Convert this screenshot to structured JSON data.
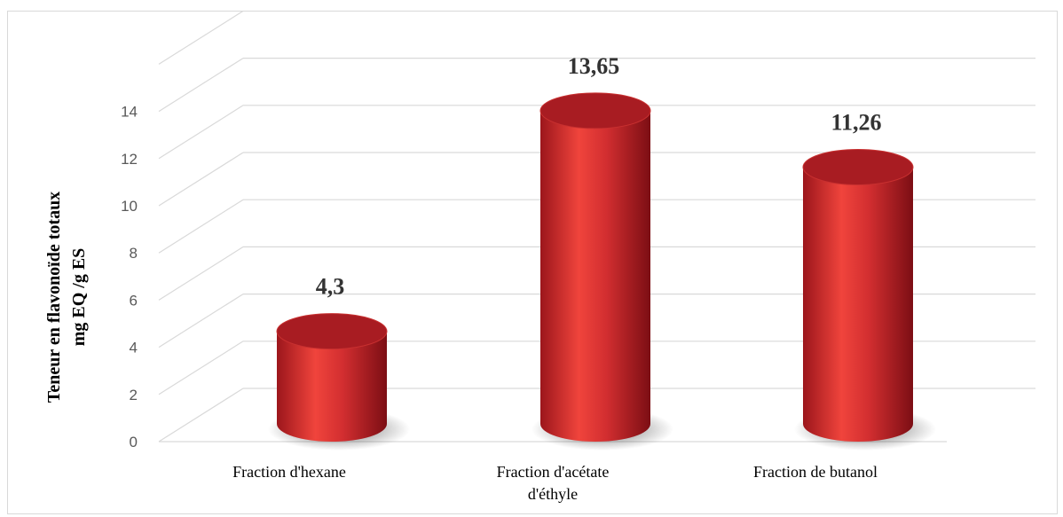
{
  "chart_data": {
    "type": "bar",
    "style": "3d-cylinder",
    "categories": [
      [
        "Fraction d'hexane"
      ],
      [
        "Fraction d'acétate",
        "d'éthyle"
      ],
      [
        "Fraction de butanol"
      ]
    ],
    "values": [
      4.3,
      13.65,
      11.26
    ],
    "data_labels": [
      "4,3",
      "13,65",
      "11,26"
    ],
    "ylabel_lines": [
      "Teneur en flavonoïde totaux",
      "mg EQ /g ES"
    ],
    "ylim": [
      0,
      16
    ],
    "yticks": [
      0,
      2,
      4,
      6,
      8,
      10,
      12,
      14
    ],
    "grid": true,
    "legend": "none",
    "colors": {
      "bar": "#c0242a",
      "bar_light": "#f0443c",
      "bar_dark": "#8e1218",
      "top": "#a81c22",
      "grid": "#d9d9d9"
    }
  }
}
